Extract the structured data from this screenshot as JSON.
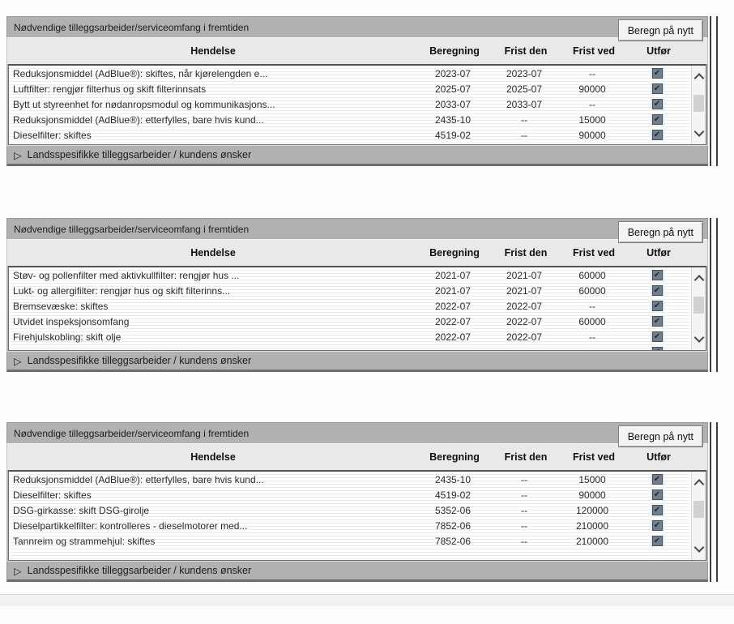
{
  "glyphs": {
    "check": "✔",
    "triangle": "▷"
  },
  "colors": {
    "panel_header_bg": "#b1b1b1",
    "column_header_bg": "#e9e9e9",
    "checkbox_fill": "#717e8c",
    "footer_bottom_edge": "#6e6e6e"
  },
  "panels": [
    {
      "title": "Nødvendige tilleggsarbeider/serviceomfang i fremtiden",
      "button_label": "Beregn på nytt",
      "columns": {
        "hendelse": "Hendelse",
        "beregning": "Beregning",
        "frist_den": "Frist den",
        "frist_ved": "Frist ved",
        "utfor": "Utfør"
      },
      "rows": [
        {
          "hendelse": "Reduksjonsmiddel (AdBlue®): skiftes, når kjørelengden e...",
          "beregning": "2023-07",
          "frist_den": "2023-07",
          "frist_ved": "--",
          "utfor_checked": true
        },
        {
          "hendelse": "Luftfilter: rengjør filterhus og skift filterinnsats",
          "beregning": "2025-07",
          "frist_den": "2025-07",
          "frist_ved": "90000",
          "utfor_checked": true
        },
        {
          "hendelse": "Bytt ut styreenhet for nødanropsmodul og kommunikasjons...",
          "beregning": "2033-07",
          "frist_den": "2033-07",
          "frist_ved": "--",
          "utfor_checked": true
        },
        {
          "hendelse": "Reduksjonsmiddel (AdBlue®): etterfylles, bare hvis kund...",
          "beregning": "2435-10",
          "frist_den": "--",
          "frist_ved": "15000",
          "utfor_checked": true
        },
        {
          "hendelse": "Dieselfilter: skiftes",
          "beregning": "4519-02",
          "frist_den": "--",
          "frist_ved": "90000",
          "utfor_checked": true
        }
      ],
      "footer_label": "Landsspesifikke tilleggsarbeider / kundens ønsker"
    },
    {
      "title": "Nødvendige tilleggsarbeider/serviceomfang i fremtiden",
      "button_label": "Beregn på nytt",
      "columns": {
        "hendelse": "Hendelse",
        "beregning": "Beregning",
        "frist_den": "Frist den",
        "frist_ved": "Frist ved",
        "utfor": "Utfør"
      },
      "rows": [
        {
          "hendelse": "Støv- og pollenfilter med aktivkullfilter: rengjør hus ...",
          "beregning": "2021-07",
          "frist_den": "2021-07",
          "frist_ved": "60000",
          "utfor_checked": true
        },
        {
          "hendelse": "Lukt- og allergifilter: rengjør hus og skift filterinns...",
          "beregning": "2021-07",
          "frist_den": "2021-07",
          "frist_ved": "60000",
          "utfor_checked": true
        },
        {
          "hendelse": "Bremsevæske: skiftes",
          "beregning": "2022-07",
          "frist_den": "2022-07",
          "frist_ved": "--",
          "utfor_checked": true
        },
        {
          "hendelse": "Utvidet inspeksjonsomfang",
          "beregning": "2022-07",
          "frist_den": "2022-07",
          "frist_ved": "60000",
          "utfor_checked": true
        },
        {
          "hendelse": "Firehjulskobling: skift olje",
          "beregning": "2022-07",
          "frist_den": "2022-07",
          "frist_ved": "--",
          "utfor_checked": true
        }
      ],
      "footer_label": "Landsspesifikke tilleggsarbeider / kundens ønsker"
    },
    {
      "title": "Nødvendige tilleggsarbeider/serviceomfang i fremtiden",
      "button_label": "Beregn på nytt",
      "columns": {
        "hendelse": "Hendelse",
        "beregning": "Beregning",
        "frist_den": "Frist den",
        "frist_ved": "Frist ved",
        "utfor": "Utfør"
      },
      "rows": [
        {
          "hendelse": "Reduksjonsmiddel (AdBlue®): etterfylles, bare hvis kund...",
          "beregning": "2435-10",
          "frist_den": "--",
          "frist_ved": "15000",
          "utfor_checked": true
        },
        {
          "hendelse": "Dieselfilter: skiftes",
          "beregning": "4519-02",
          "frist_den": "--",
          "frist_ved": "90000",
          "utfor_checked": true
        },
        {
          "hendelse": "DSG-girkasse: skift DSG-girolje",
          "beregning": "5352-06",
          "frist_den": "--",
          "frist_ved": "120000",
          "utfor_checked": true
        },
        {
          "hendelse": "Dieselpartikkelfilter: kontrolleres - dieselmotorer med...",
          "beregning": "7852-06",
          "frist_den": "--",
          "frist_ved": "210000",
          "utfor_checked": true
        },
        {
          "hendelse": "Tannreim og strammehjul: skiftes",
          "beregning": "7852-06",
          "frist_den": "--",
          "frist_ved": "210000",
          "utfor_checked": true
        }
      ],
      "footer_label": "Landsspesifikke tilleggsarbeider / kundens ønsker"
    }
  ]
}
